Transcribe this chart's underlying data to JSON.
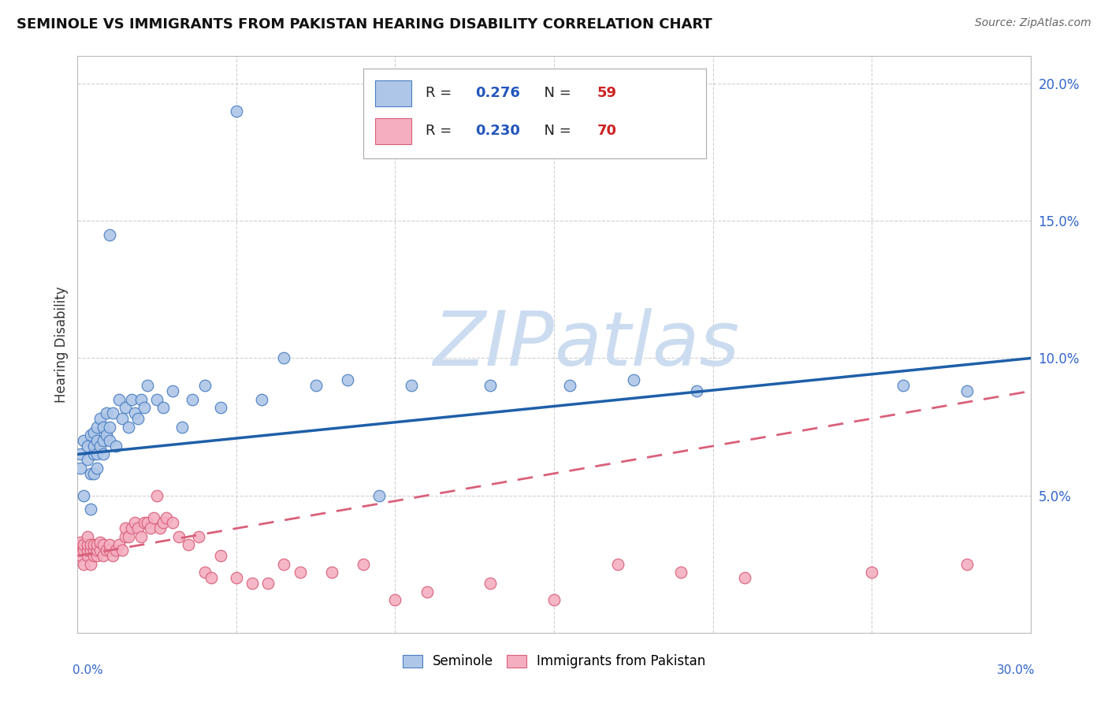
{
  "title": "SEMINOLE VS IMMIGRANTS FROM PAKISTAN HEARING DISABILITY CORRELATION CHART",
  "source": "Source: ZipAtlas.com",
  "ylabel": "Hearing Disability",
  "ylim": [
    0.0,
    0.21
  ],
  "xlim": [
    0.0,
    0.3
  ],
  "yticks": [
    0.05,
    0.1,
    0.15,
    0.2
  ],
  "ytick_labels": [
    "5.0%",
    "10.0%",
    "15.0%",
    "20.0%"
  ],
  "seminole_R": 0.276,
  "seminole_N": 59,
  "pakistan_R": 0.23,
  "pakistan_N": 70,
  "seminole_color": "#aec6e8",
  "pakistan_color": "#f4aec0",
  "seminole_edge_color": "#4a7fc1",
  "pakistan_edge_color": "#d9607a",
  "seminole_line_color": "#1e5fa8",
  "pakistan_line_color": "#d9607a",
  "watermark_color": "#ccdcf0",
  "background_color": "#ffffff",
  "grid_color": "#cccccc",
  "seminole_x": [
    0.001,
    0.001,
    0.002,
    0.002,
    0.003,
    0.003,
    0.004,
    0.004,
    0.004,
    0.005,
    0.005,
    0.005,
    0.005,
    0.006,
    0.006,
    0.006,
    0.006,
    0.007,
    0.007,
    0.008,
    0.008,
    0.008,
    0.009,
    0.009,
    0.01,
    0.01,
    0.011,
    0.012,
    0.013,
    0.014,
    0.015,
    0.016,
    0.017,
    0.018,
    0.019,
    0.02,
    0.021,
    0.022,
    0.025,
    0.027,
    0.03,
    0.033,
    0.036,
    0.04,
    0.045,
    0.05,
    0.058,
    0.065,
    0.075,
    0.085,
    0.095,
    0.105,
    0.13,
    0.155,
    0.175,
    0.195,
    0.26,
    0.28,
    0.01
  ],
  "seminole_y": [
    0.06,
    0.065,
    0.05,
    0.07,
    0.063,
    0.068,
    0.045,
    0.058,
    0.072,
    0.065,
    0.058,
    0.068,
    0.073,
    0.06,
    0.065,
    0.07,
    0.075,
    0.068,
    0.078,
    0.065,
    0.07,
    0.075,
    0.072,
    0.08,
    0.07,
    0.075,
    0.08,
    0.068,
    0.085,
    0.078,
    0.082,
    0.075,
    0.085,
    0.08,
    0.078,
    0.085,
    0.082,
    0.09,
    0.085,
    0.082,
    0.088,
    0.075,
    0.085,
    0.09,
    0.082,
    0.19,
    0.085,
    0.1,
    0.09,
    0.092,
    0.05,
    0.09,
    0.09,
    0.09,
    0.092,
    0.088,
    0.09,
    0.088,
    0.145
  ],
  "pakistan_x": [
    0.0,
    0.001,
    0.001,
    0.001,
    0.001,
    0.002,
    0.002,
    0.002,
    0.003,
    0.003,
    0.003,
    0.003,
    0.004,
    0.004,
    0.004,
    0.005,
    0.005,
    0.005,
    0.006,
    0.006,
    0.006,
    0.007,
    0.007,
    0.008,
    0.008,
    0.009,
    0.01,
    0.01,
    0.011,
    0.012,
    0.013,
    0.014,
    0.015,
    0.015,
    0.016,
    0.017,
    0.018,
    0.019,
    0.02,
    0.021,
    0.022,
    0.023,
    0.024,
    0.025,
    0.026,
    0.027,
    0.028,
    0.03,
    0.032,
    0.035,
    0.038,
    0.04,
    0.042,
    0.045,
    0.05,
    0.055,
    0.06,
    0.065,
    0.07,
    0.08,
    0.09,
    0.1,
    0.11,
    0.13,
    0.15,
    0.17,
    0.19,
    0.21,
    0.25,
    0.28
  ],
  "pakistan_y": [
    0.03,
    0.028,
    0.03,
    0.032,
    0.033,
    0.025,
    0.03,
    0.032,
    0.028,
    0.03,
    0.032,
    0.035,
    0.025,
    0.03,
    0.032,
    0.028,
    0.03,
    0.032,
    0.028,
    0.03,
    0.032,
    0.03,
    0.033,
    0.028,
    0.032,
    0.03,
    0.03,
    0.032,
    0.028,
    0.03,
    0.032,
    0.03,
    0.035,
    0.038,
    0.035,
    0.038,
    0.04,
    0.038,
    0.035,
    0.04,
    0.04,
    0.038,
    0.042,
    0.05,
    0.038,
    0.04,
    0.042,
    0.04,
    0.035,
    0.032,
    0.035,
    0.022,
    0.02,
    0.028,
    0.02,
    0.018,
    0.018,
    0.025,
    0.022,
    0.022,
    0.025,
    0.012,
    0.015,
    0.018,
    0.012,
    0.025,
    0.022,
    0.02,
    0.022,
    0.025
  ],
  "seminole_line_x0": 0.0,
  "seminole_line_x1": 0.3,
  "seminole_line_y0": 0.065,
  "seminole_line_y1": 0.1,
  "pakistan_line_x0": 0.0,
  "pakistan_line_x1": 0.3,
  "pakistan_line_y0": 0.028,
  "pakistan_line_y1": 0.088
}
